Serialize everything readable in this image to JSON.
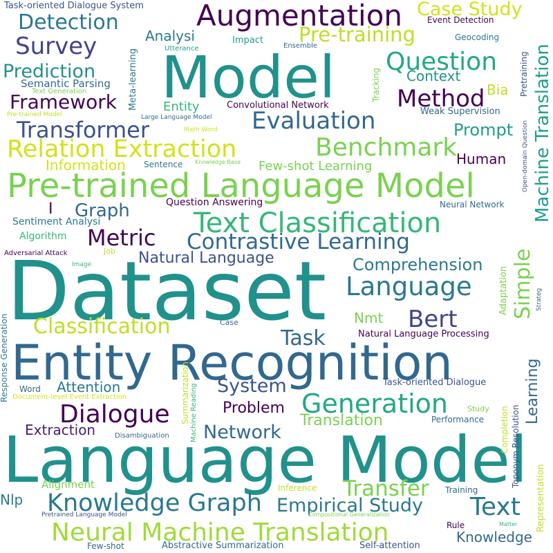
{
  "words": [
    {
      "text": "Dataset",
      "color": "#21918c"
    },
    {
      "text": "Language Model",
      "color": "#21918c"
    },
    {
      "text": "Entity Recognition",
      "color": "#31688e"
    },
    {
      "text": "Model",
      "color": "#21918c"
    },
    {
      "text": "Pre-trained Language Model",
      "color": "#7ad151"
    },
    {
      "text": "Augmentation",
      "color": "#440154"
    },
    {
      "text": "Text Classification",
      "color": "#35b779"
    },
    {
      "text": "Neural Machine Translation",
      "color": "#a0da39"
    },
    {
      "text": "Relation Extraction",
      "color": "#d2e21b"
    },
    {
      "text": "Knowledge Graph",
      "color": "#2a788e"
    },
    {
      "text": "Contrastive Learning",
      "color": "#31688e"
    },
    {
      "text": "Generation",
      "color": "#22a884"
    },
    {
      "text": "Language",
      "color": "#2a788e"
    },
    {
      "text": "Benchmark",
      "color": "#7ad151"
    },
    {
      "text": "Dialogue",
      "color": "#440154"
    },
    {
      "text": "Question",
      "color": "#22a884"
    },
    {
      "text": "Transformer",
      "color": "#3b528b"
    },
    {
      "text": "Evaluation",
      "color": "#31688e"
    },
    {
      "text": "Classification",
      "color": "#bddf26"
    },
    {
      "text": "Method",
      "color": "#440154"
    },
    {
      "text": "Survey",
      "color": "#414487"
    },
    {
      "text": "Detection",
      "color": "#2a788e"
    },
    {
      "text": "Empirical Study",
      "color": "#2a788e"
    },
    {
      "text": "Transfer",
      "color": "#7ad151"
    },
    {
      "text": "Text",
      "color": "#2a788e"
    },
    {
      "text": "Bert",
      "color": "#414487"
    },
    {
      "text": "Prediction",
      "color": "#21918c"
    },
    {
      "text": "Framework",
      "color": "#440154"
    },
    {
      "text": "Case Study",
      "color": "#d2e21b"
    },
    {
      "text": "Pre-training",
      "color": "#bddf26"
    },
    {
      "text": "Metric",
      "color": "#440154"
    },
    {
      "text": "Comprehension",
      "color": "#2a788e"
    },
    {
      "text": "Network",
      "color": "#31688e"
    },
    {
      "text": "System",
      "color": "#3b528b"
    },
    {
      "text": "Task",
      "color": "#31688e"
    },
    {
      "text": "Graph",
      "color": "#31688e"
    },
    {
      "text": "Prompt",
      "color": "#1f9e89"
    },
    {
      "text": "Translation",
      "color": "#7ad151"
    },
    {
      "text": "Natural Language",
      "color": "#3b528b"
    },
    {
      "text": "Problem",
      "color": "#440154"
    },
    {
      "text": "Extraction",
      "color": "#481c6e"
    },
    {
      "text": "Attention",
      "color": "#2a788e"
    },
    {
      "text": "Knowledge",
      "color": "#31688e"
    },
    {
      "text": "Context",
      "color": "#21918c"
    },
    {
      "text": "Entity",
      "color": "#35b779"
    },
    {
      "text": "Information",
      "color": "#d2e21b"
    },
    {
      "text": "Few-shot Learning",
      "color": "#7ad151"
    },
    {
      "text": "Human",
      "color": "#440154"
    },
    {
      "text": "Analysi",
      "color": "#2a788e"
    },
    {
      "text": "Nmt",
      "color": "#7ad151"
    },
    {
      "text": "Nlp",
      "color": "#2a788e"
    },
    {
      "text": "Bia",
      "color": "#bddf26"
    },
    {
      "text": "I",
      "color": "#440154"
    },
    {
      "text": "Alignment",
      "color": "#7ad151"
    },
    {
      "text": "Semantic Parsing",
      "color": "#31688e"
    },
    {
      "text": "Question Answering",
      "color": "#440154"
    },
    {
      "text": "Sentiment Analysi",
      "color": "#2a788e"
    },
    {
      "text": "Algorithm",
      "color": "#35b779"
    },
    {
      "text": "Convolutional Network",
      "color": "#440154"
    },
    {
      "text": "Natural Language Processing",
      "color": "#440154"
    },
    {
      "text": "Task-oriented Dialogue",
      "color": "#3b528b"
    },
    {
      "text": "Abstractive Summarization",
      "color": "#31688e"
    },
    {
      "text": "Self-attention",
      "color": "#3b528b"
    },
    {
      "text": "Task-oriented Dialogue System",
      "color": "#3b528b"
    },
    {
      "text": "Event Detection",
      "color": "#440154"
    },
    {
      "text": "Weak Supervision",
      "color": "#31688e"
    },
    {
      "text": "Neural Network",
      "color": "#31688e"
    },
    {
      "text": "Sentence",
      "color": "#2a788e"
    },
    {
      "text": "Impact",
      "color": "#1f9e89"
    },
    {
      "text": "Geocoding",
      "color": "#2a788e"
    },
    {
      "text": "Performance",
      "color": "#31688e"
    },
    {
      "text": "Inference",
      "color": "#bddf26"
    },
    {
      "text": "Training",
      "color": "#31688e"
    },
    {
      "text": "Rule",
      "color": "#440154"
    },
    {
      "text": "Few-shot",
      "color": "#31688e"
    },
    {
      "text": "Word",
      "color": "#31688e"
    },
    {
      "text": "Case",
      "color": "#31688e"
    },
    {
      "text": "Job",
      "color": "#bddf26"
    },
    {
      "text": "Adversarial Attack",
      "color": "#440154"
    },
    {
      "text": "Disambiguation",
      "color": "#31688e"
    },
    {
      "text": "Study",
      "color": "#7ad151"
    },
    {
      "text": "Document-level Event Extraction",
      "color": "#d2e21b"
    },
    {
      "text": "Text Generation",
      "color": "#7ad151"
    },
    {
      "text": "Pre-trained Model",
      "color": "#bddf26"
    },
    {
      "text": "Large Language Model",
      "color": "#31688e"
    },
    {
      "text": "Math Word",
      "color": "#d2e21b"
    },
    {
      "text": "Utterance",
      "color": "#1f9e89"
    },
    {
      "text": "Ensemble",
      "color": "#31688e"
    },
    {
      "text": "Knowledge Base",
      "color": "#7ad151"
    },
    {
      "text": "Image",
      "color": "#35b779"
    },
    {
      "text": "Pretrained Language Model",
      "color": "#3b528b"
    },
    {
      "text": "Compositional Generalization",
      "color": "#7ad151"
    },
    {
      "text": "Matter",
      "color": "#35b779"
    },
    {
      "text": "Machine Translation",
      "color": "#1f9e89"
    },
    {
      "text": "Simple",
      "color": "#7ad151"
    },
    {
      "text": "Learning",
      "color": "#31688e"
    },
    {
      "text": "Representation",
      "color": "#bddf26"
    },
    {
      "text": "Toponym Resolution",
      "color": "#3b528b"
    },
    {
      "text": "Completion",
      "color": "#bddf26"
    },
    {
      "text": "Adaptation",
      "color": "#7ad151"
    },
    {
      "text": "Strateg",
      "color": "#31688e"
    },
    {
      "text": "Pretraining",
      "color": "#3b528b"
    },
    {
      "text": "Open-domain Question",
      "color": "#3b528b"
    },
    {
      "text": "Tracking",
      "color": "#7ad151"
    },
    {
      "text": "Meta-learning",
      "color": "#2a788e"
    },
    {
      "text": "Response Generation",
      "color": "#2a788e"
    },
    {
      "text": "Summarization",
      "color": "#bddf26"
    },
    {
      "text": "Machine Reading",
      "color": "#35b779"
    }
  ]
}
